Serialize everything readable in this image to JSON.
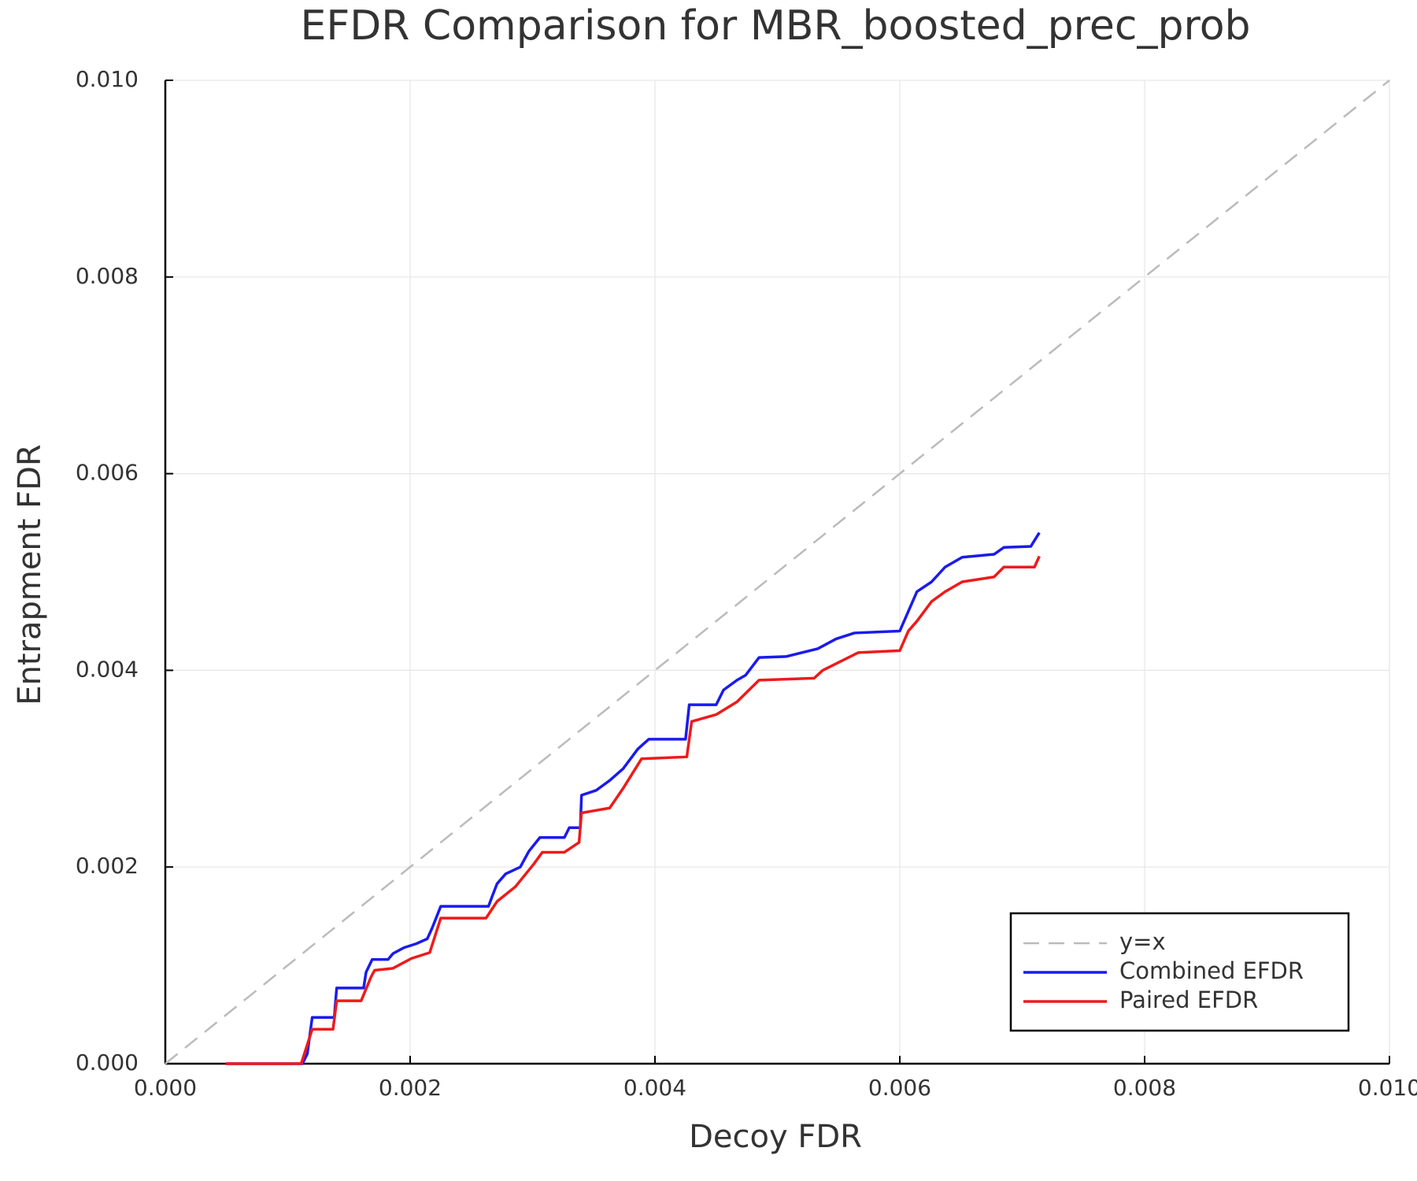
{
  "chart_data": {
    "type": "line",
    "title": "EFDR Comparison for MBR_boosted_prec_prob",
    "x_label": "Decoy FDR",
    "y_label": "Entrapment FDR",
    "xlim": [
      0,
      0.01
    ],
    "ylim": [
      0,
      0.01
    ],
    "xticks": [
      {
        "value": 0,
        "label": "0.000"
      },
      0.002,
      0.004,
      0.006,
      0.008,
      {
        "value": 0.01,
        "label": "0.010"
      }
    ],
    "yticks": [
      {
        "value": 0,
        "label": "0.000"
      },
      0.002,
      0.004,
      0.006,
      0.008,
      {
        "value": 0.01,
        "label": "0.010"
      }
    ],
    "grid": true,
    "legend": "lower right",
    "series": [
      {
        "name": "y=x",
        "color": "#bbbbbb",
        "dashed": true,
        "x": [
          0,
          0.01
        ],
        "values": [
          0,
          0.01
        ]
      },
      {
        "name": "Combined EFDR",
        "color": "#1a1aee",
        "x": [
          0.000495,
          0.00112,
          0.00116,
          0.0012,
          0.00138,
          0.0014,
          0.00162,
          0.00164,
          0.00169,
          0.00182,
          0.00186,
          0.00195,
          0.00205,
          0.00214,
          0.00218,
          0.00225,
          0.00264,
          0.00267,
          0.00271,
          0.00278,
          0.0029,
          0.00297,
          0.00306,
          0.00326,
          0.0033,
          0.00339,
          0.0034,
          0.00352,
          0.00363,
          0.00374,
          0.00386,
          0.00395,
          0.00425,
          0.00428,
          0.0045,
          0.00456,
          0.00467,
          0.00474,
          0.00485,
          0.00507,
          0.00533,
          0.00548,
          0.00563,
          0.006,
          0.00607,
          0.00614,
          0.00626,
          0.00637,
          0.00651,
          0.00677,
          0.00685,
          0.00707,
          0.00714
        ],
        "values": [
          0,
          0,
          0.0001,
          0.00047,
          0.00047,
          0.00077,
          0.00077,
          0.00093,
          0.00106,
          0.00106,
          0.00112,
          0.00118,
          0.00122,
          0.00127,
          0.00138,
          0.0016,
          0.0016,
          0.0017,
          0.00183,
          0.00193,
          0.002,
          0.00216,
          0.0023,
          0.0023,
          0.0024,
          0.0024,
          0.00273,
          0.00278,
          0.00288,
          0.003,
          0.0032,
          0.0033,
          0.0033,
          0.00365,
          0.00365,
          0.0038,
          0.0039,
          0.00395,
          0.00413,
          0.00414,
          0.00422,
          0.00432,
          0.00438,
          0.0044,
          0.0046,
          0.0048,
          0.0049,
          0.00505,
          0.00515,
          0.00518,
          0.00525,
          0.00526,
          0.0054
        ]
      },
      {
        "name": "Paired EFDR",
        "color": "#ee1a1a",
        "x": [
          0.000495,
          0.00111,
          0.0012,
          0.00137,
          0.0014,
          0.0016,
          0.00168,
          0.00171,
          0.00186,
          0.00201,
          0.00216,
          0.00225,
          0.00262,
          0.00271,
          0.00286,
          0.00301,
          0.00308,
          0.00326,
          0.00338,
          0.0034,
          0.00363,
          0.00374,
          0.00389,
          0.00426,
          0.0043,
          0.0045,
          0.00467,
          0.00485,
          0.0053,
          0.00537,
          0.00566,
          0.006,
          0.00607,
          0.00614,
          0.00626,
          0.00637,
          0.00651,
          0.00677,
          0.00685,
          0.0071,
          0.00714
        ],
        "values": [
          0,
          0,
          0.00035,
          0.00035,
          0.00064,
          0.00064,
          0.00088,
          0.00095,
          0.00097,
          0.00107,
          0.00113,
          0.00148,
          0.00148,
          0.00165,
          0.0018,
          0.00203,
          0.00215,
          0.00215,
          0.00225,
          0.00255,
          0.0026,
          0.0028,
          0.0031,
          0.00312,
          0.00348,
          0.00355,
          0.00368,
          0.0039,
          0.00392,
          0.004,
          0.00418,
          0.0042,
          0.0044,
          0.0045,
          0.0047,
          0.0048,
          0.0049,
          0.00495,
          0.00505,
          0.00505,
          0.00516
        ]
      }
    ]
  }
}
